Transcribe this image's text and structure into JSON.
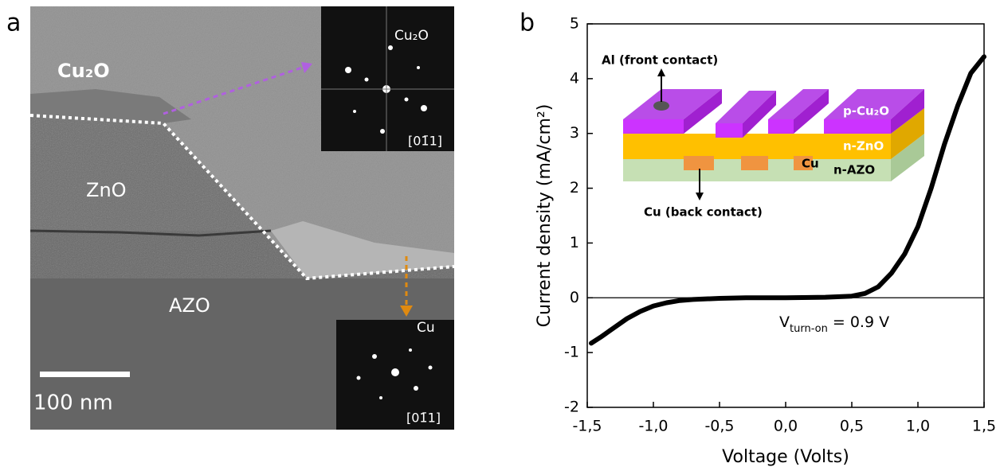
{
  "panel_a": {
    "label": "a",
    "labels": {
      "top": "Cu₂O",
      "middle": "ZnO",
      "bottom": "AZO"
    },
    "scale_bar": "100 nm",
    "insets": [
      {
        "phase": "Cu₂O",
        "zone_axis": "[01̄1]"
      },
      {
        "phase": "Cu",
        "zone_axis": "[01̄1]"
      }
    ]
  },
  "chart_data": {
    "type": "line",
    "panel_label": "b",
    "xlabel": "Voltage (Volts)",
    "ylabel": "Current density (mA/cm²)",
    "annotation": {
      "main": "V",
      "sub": "turn-on",
      "rest": " = 0.9 V"
    },
    "inset": {
      "front_contact": "Al (front contact)",
      "back_contact": "Cu (back contact)",
      "top_layer": "p-Cu₂O",
      "middle_layer": "n-ZnO",
      "metal": "Cu",
      "bottom_layer": "n-AZO"
    },
    "x": [
      -1.47,
      -1.4,
      -1.3,
      -1.2,
      -1.1,
      -1.0,
      -0.9,
      -0.8,
      -0.7,
      -0.5,
      -0.3,
      0,
      0.3,
      0.5,
      0.6,
      0.7,
      0.8,
      0.9,
      1.0,
      1.1,
      1.2,
      1.3,
      1.4,
      1.5
    ],
    "values": [
      -0.83,
      -0.72,
      -0.55,
      -0.38,
      -0.25,
      -0.15,
      -0.09,
      -0.05,
      -0.03,
      -0.01,
      0,
      0,
      0.01,
      0.03,
      0.08,
      0.2,
      0.45,
      0.8,
      1.3,
      2.0,
      2.8,
      3.5,
      4.1,
      4.4
    ],
    "color": "#000000",
    "xlim": [
      -1.5,
      1.5
    ],
    "xticks": [
      {
        "value": -1.5,
        "label": "-1,5"
      },
      {
        "value": -1.0,
        "label": "-1,0"
      },
      {
        "value": -0.5,
        "label": "-0,5"
      },
      {
        "value": 0,
        "label": "0,0"
      },
      {
        "value": 0.5,
        "label": "0,5"
      },
      {
        "value": 1.0,
        "label": "1,0"
      },
      {
        "value": 1.5,
        "label": "1,5"
      }
    ],
    "ylim": [
      -2,
      5
    ],
    "yticks": [
      -2,
      -1,
      0,
      1,
      2,
      3,
      4,
      5
    ],
    "zero_line": true
  }
}
